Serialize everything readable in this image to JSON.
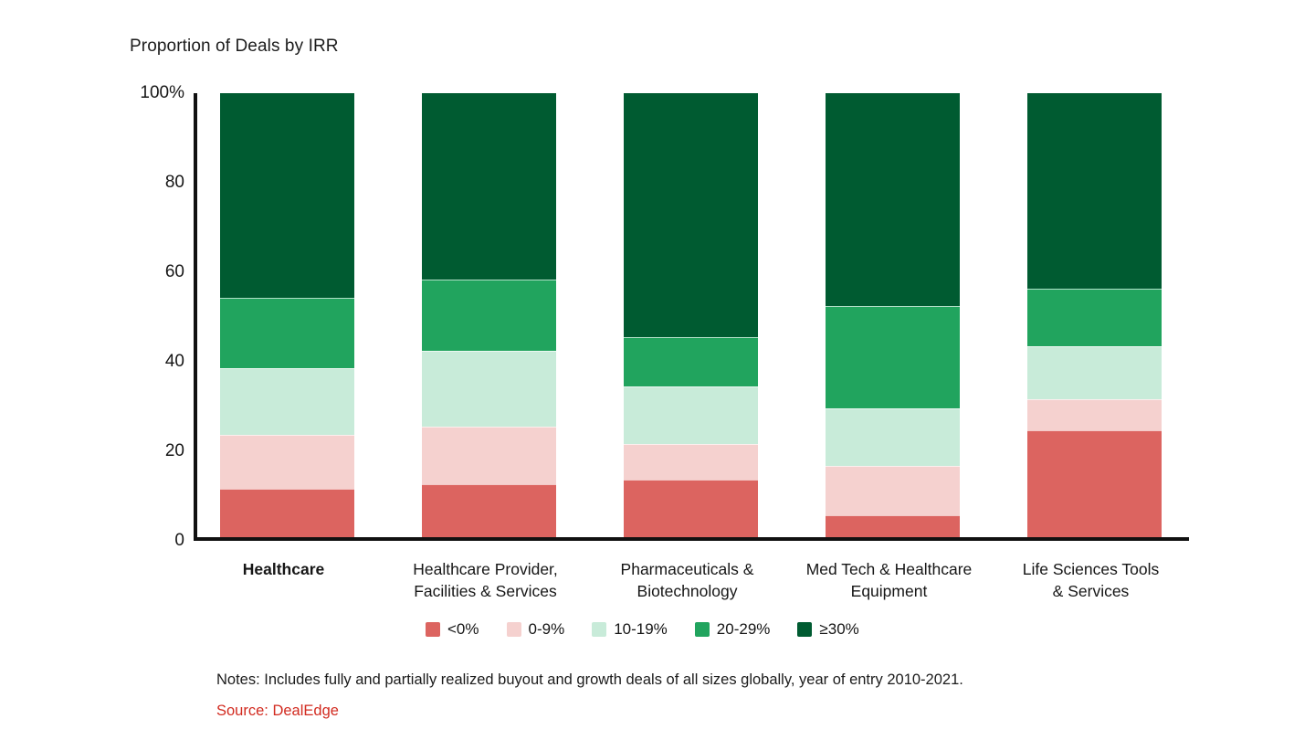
{
  "chart_data": {
    "type": "bar",
    "stacked": true,
    "units": "percent of deals",
    "title": "Proportion of Deals by IRR",
    "ylim": [
      0,
      100
    ],
    "grid": false,
    "legend_position": "bottom",
    "y_ticks": [
      {
        "label": "100%",
        "value": 100
      },
      {
        "label": "80",
        "value": 80
      },
      {
        "label": "60",
        "value": 60
      },
      {
        "label": "40",
        "value": 40
      },
      {
        "label": "20",
        "value": 20
      },
      {
        "label": "0",
        "value": 0
      }
    ],
    "categories": [
      {
        "lines": [
          "Healthcare"
        ],
        "bold": true
      },
      {
        "lines": [
          "Healthcare Provider,",
          "Facilities & Services"
        ],
        "bold": false
      },
      {
        "lines": [
          "Pharmaceuticals &",
          "Biotechnology"
        ],
        "bold": false
      },
      {
        "lines": [
          "Med Tech & Healthcare",
          "Equipment"
        ],
        "bold": false
      },
      {
        "lines": [
          "Life Sciences Tools",
          "& Services"
        ],
        "bold": false
      }
    ],
    "series": [
      {
        "name": "<0%",
        "color": "#DC6460",
        "values": [
          11,
          12,
          13,
          5,
          24
        ]
      },
      {
        "name": "0-9%",
        "color": "#F5D1CF",
        "values": [
          12,
          13,
          8,
          11,
          7
        ]
      },
      {
        "name": "10-19%",
        "color": "#C8EBD9",
        "values": [
          15,
          17,
          13,
          13,
          12
        ]
      },
      {
        "name": "20-29%",
        "color": "#21A45E",
        "values": [
          16,
          16,
          11,
          23,
          13
        ]
      },
      {
        "name": "≥30%",
        "color": "#005B31",
        "values": [
          46,
          42,
          55,
          48,
          44
        ]
      }
    ]
  },
  "footnotes": {
    "notes": "Notes: Includes fully and partially realized buyout and growth deals of all sizes globally, year of entry 2010-2021.",
    "source": "Source: DealEdge",
    "source_color": "#D22B20"
  },
  "layout_colors": {
    "axis": "#111111",
    "text": "#161616",
    "background": "#ffffff"
  }
}
